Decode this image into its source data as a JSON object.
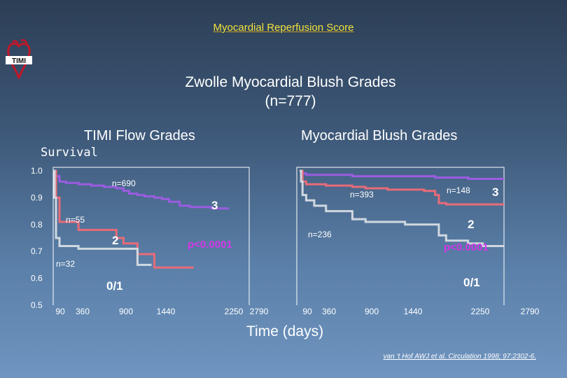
{
  "header_title": "Myocardial Reperfusion Score",
  "logo_text": "TIMI",
  "main_title_line1": "Zwolle Myocardial Blush Grades",
  "main_title_line2": "(n=777)",
  "left_panel_title": "TIMI Flow Grades",
  "right_panel_title": "Myocardial Blush Grades",
  "ylabel": "Survival",
  "xlabel": "Time (days)",
  "citation": "van ‘t Hof AWJ et al. Circulation 1998; 97:2302-6.",
  "colors": {
    "grade3": "#9b5ce0",
    "grade2": "#e86b78",
    "grade01": "#d0d8e0",
    "pvalue": "#d438e8",
    "frame": "#ffffff"
  },
  "chart_data": [
    {
      "type": "line",
      "title": "TIMI Flow Grades",
      "ylabel": "Survival",
      "xlabel": "Time (days)",
      "ylim": [
        0.5,
        1.0
      ],
      "xlim": [
        0,
        2790
      ],
      "y_ticks": [
        "1.0",
        "0.9",
        "0.8",
        "0.7",
        "0.6",
        "0.5"
      ],
      "x_ticks": [
        "90",
        "360",
        "900",
        "1440",
        "2250",
        "2790"
      ],
      "p_value": "p<0.0001",
      "series": [
        {
          "name": "3",
          "n_label": "n=690",
          "x": [
            0,
            20,
            40,
            90,
            180,
            360,
            540,
            720,
            900,
            1000,
            1080,
            1200,
            1300,
            1440,
            1550,
            1650,
            1800,
            1950,
            2100,
            2250,
            2500
          ],
          "y": [
            1.0,
            0.99,
            0.98,
            0.96,
            0.955,
            0.95,
            0.945,
            0.94,
            0.935,
            0.925,
            0.915,
            0.91,
            0.905,
            0.9,
            0.895,
            0.885,
            0.87,
            0.865,
            0.865,
            0.86,
            0.86
          ]
        },
        {
          "name": "2",
          "n_label": "n=55",
          "x": [
            0,
            40,
            90,
            360,
            720,
            900,
            1000,
            1200,
            1440,
            1800,
            2000
          ],
          "y": [
            1.0,
            0.9,
            0.81,
            0.78,
            0.78,
            0.75,
            0.73,
            0.69,
            0.64,
            0.64,
            0.64
          ]
        },
        {
          "name": "0/1",
          "n_label": "n=32",
          "x": [
            0,
            20,
            40,
            90,
            300,
            360,
            900,
            1200,
            1400
          ],
          "y": [
            1.0,
            0.9,
            0.75,
            0.72,
            0.72,
            0.71,
            0.71,
            0.65,
            0.65
          ]
        }
      ]
    },
    {
      "type": "line",
      "title": "Myocardial Blush Grades",
      "xlabel": "Time (days)",
      "ylim": [
        0.5,
        1.0
      ],
      "xlim": [
        0,
        2790
      ],
      "x_ticks": [
        "90",
        "360",
        "900",
        "1440",
        "2250",
        "2790"
      ],
      "p_value": "p<0.0001",
      "series": [
        {
          "name": "3",
          "n_label": "n=148",
          "x": [
            0,
            40,
            90,
            200,
            360,
            540,
            720,
            900,
            1080,
            1260,
            1440,
            1650,
            1850,
            2000,
            2150,
            2300,
            2500,
            2790
          ],
          "y": [
            1.0,
            0.99,
            0.985,
            0.985,
            0.985,
            0.985,
            0.98,
            0.98,
            0.98,
            0.98,
            0.98,
            0.98,
            0.975,
            0.975,
            0.975,
            0.97,
            0.97,
            0.97
          ]
        },
        {
          "name": "2",
          "n_label": "n=393",
          "x": [
            0,
            40,
            90,
            360,
            720,
            900,
            1200,
            1440,
            1700,
            1850,
            1900,
            2000,
            2200,
            2500,
            2790
          ],
          "y": [
            1.0,
            0.96,
            0.95,
            0.945,
            0.94,
            0.935,
            0.93,
            0.93,
            0.925,
            0.91,
            0.88,
            0.875,
            0.875,
            0.875,
            0.875
          ]
        },
        {
          "name": "0/1",
          "n_label": "n=236",
          "x": [
            0,
            20,
            40,
            90,
            200,
            360,
            720,
            900,
            1200,
            1440,
            1700,
            1850,
            1900,
            2000,
            2300,
            2500,
            2790
          ],
          "y": [
            1.0,
            0.96,
            0.91,
            0.89,
            0.87,
            0.85,
            0.82,
            0.81,
            0.81,
            0.8,
            0.8,
            0.8,
            0.76,
            0.74,
            0.73,
            0.72,
            0.72
          ]
        }
      ]
    }
  ]
}
